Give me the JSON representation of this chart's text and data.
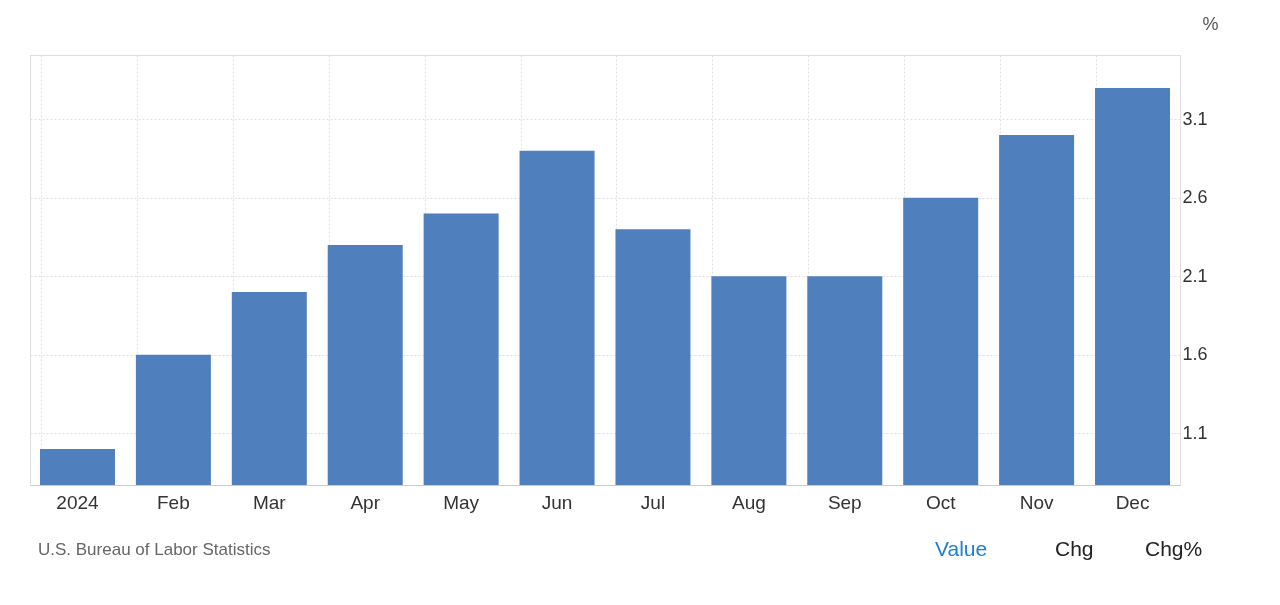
{
  "chart_data": {
    "type": "bar",
    "ylabel": "%",
    "categories": [
      "2024",
      "Feb",
      "Mar",
      "Apr",
      "May",
      "Jun",
      "Jul",
      "Aug",
      "Sep",
      "Oct",
      "Nov",
      "Dec"
    ],
    "values": [
      1.0,
      1.6,
      2.0,
      2.3,
      2.5,
      2.9,
      2.4,
      2.1,
      2.1,
      2.6,
      3.0,
      3.3
    ],
    "color": "#4f7fbc",
    "ylim": [
      0.77,
      3.51
    ],
    "yticks": [
      1.1,
      1.6,
      2.1,
      2.6,
      3.1
    ],
    "grid": true,
    "annotations": [
      "U.S. Bureau of Labor Statistics",
      "Value",
      "Chg",
      "Chg%"
    ]
  }
}
